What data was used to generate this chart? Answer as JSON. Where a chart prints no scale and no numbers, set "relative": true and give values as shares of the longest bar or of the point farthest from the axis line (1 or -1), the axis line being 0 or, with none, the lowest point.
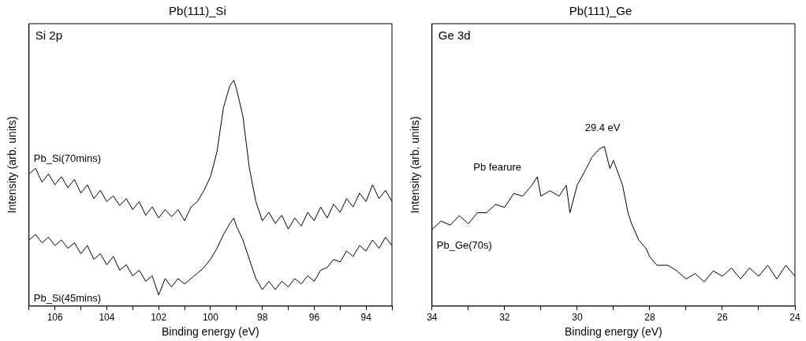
{
  "chart_data": [
    {
      "type": "line",
      "title": "Pb(111)_Si",
      "xlabel": "Binding energy (eV)",
      "ylabel": "Intensity (arb. units)",
      "relative": true,
      "marker": "none",
      "grid": false,
      "legend": false,
      "tick_labels": "x",
      "xlim": [
        107,
        93
      ],
      "xticks": [
        {
          "value": 107,
          "label": null
        },
        106,
        {
          "value": 105,
          "label": null
        },
        104,
        {
          "value": 103,
          "label": null
        },
        102,
        {
          "value": 101,
          "label": null
        },
        100,
        {
          "value": 99,
          "label": null
        },
        98,
        {
          "value": 97,
          "label": null
        },
        96,
        {
          "value": 95,
          "label": null
        },
        94,
        {
          "value": 93,
          "label": null
        }
      ],
      "annotations": [
        "Si 2p"
      ],
      "x": [
        107,
        106.75,
        106.5,
        106.25,
        106,
        105.75,
        105.5,
        105.25,
        105,
        104.75,
        104.5,
        104.25,
        104,
        103.75,
        103.5,
        103.25,
        103,
        102.75,
        102.5,
        102.25,
        102,
        101.75,
        101.5,
        101.25,
        101,
        100.75,
        100.5,
        100.25,
        100,
        99.75,
        99.5,
        99.25,
        99.1,
        99,
        98.75,
        98.5,
        98.25,
        98,
        97.75,
        97.5,
        97.25,
        97,
        96.75,
        96.5,
        96.25,
        96,
        95.75,
        95.5,
        95.25,
        95,
        94.75,
        94.5,
        94.25,
        94,
        93.75,
        93.5,
        93.25,
        93
      ],
      "series": [
        {
          "name": "Pb_Si(70mins)",
          "color": "#000000",
          "values": [
            0.585,
            0.61,
            0.549,
            0.585,
            0.537,
            0.573,
            0.524,
            0.561,
            0.5,
            0.537,
            0.476,
            0.512,
            0.463,
            0.488,
            0.445,
            0.476,
            0.427,
            0.463,
            0.402,
            0.439,
            0.39,
            0.427,
            0.396,
            0.427,
            0.378,
            0.439,
            0.463,
            0.512,
            0.573,
            0.683,
            0.878,
            0.976,
            1,
            0.963,
            0.841,
            0.61,
            0.463,
            0.378,
            0.415,
            0.366,
            0.402,
            0.341,
            0.39,
            0.354,
            0.415,
            0.378,
            0.439,
            0.39,
            0.451,
            0.415,
            0.476,
            0.439,
            0.5,
            0.463,
            0.537,
            0.476,
            0.512,
            0.463
          ]
        },
        {
          "name": "Pb_Si(45mins)",
          "color": "#000000",
          "values": [
            0.293,
            0.317,
            0.28,
            0.305,
            0.268,
            0.293,
            0.256,
            0.28,
            0.232,
            0.268,
            0.207,
            0.232,
            0.183,
            0.22,
            0.159,
            0.183,
            0.134,
            0.159,
            0.11,
            0.134,
            0.049,
            0.122,
            0.085,
            0.122,
            0.098,
            0.122,
            0.146,
            0.171,
            0.207,
            0.256,
            0.317,
            0.366,
            0.39,
            0.354,
            0.293,
            0.207,
            0.122,
            0.073,
            0.11,
            0.073,
            0.11,
            0.085,
            0.122,
            0.098,
            0.134,
            0.11,
            0.159,
            0.171,
            0.207,
            0.195,
            0.244,
            0.22,
            0.268,
            0.244,
            0.293,
            0.256,
            0.305,
            0.268
          ]
        }
      ]
    },
    {
      "type": "line",
      "title": "Pb(111)_Ge",
      "xlabel": "Binding energy (eV)",
      "ylabel": "Intensity (arb. units)",
      "relative": true,
      "marker": "none",
      "grid": false,
      "legend": false,
      "tick_labels": "x",
      "xlim": [
        34,
        24
      ],
      "xticks": [
        34,
        {
          "value": 33,
          "label": null
        },
        32,
        {
          "value": 31,
          "label": null
        },
        30,
        {
          "value": 29,
          "label": null
        },
        28,
        {
          "value": 27,
          "label": null
        },
        26,
        {
          "value": 25,
          "label": null
        },
        24
      ],
      "annotations": [
        "Ge 3d",
        "Pb fearure",
        "29.4 eV"
      ],
      "x": [
        34,
        33.75,
        33.5,
        33.25,
        33,
        32.75,
        32.5,
        32.25,
        32,
        31.75,
        31.5,
        31.25,
        31.1,
        31,
        30.75,
        30.5,
        30.3,
        30.2,
        30,
        29.75,
        29.6,
        29.4,
        29.25,
        29.1,
        29,
        28.75,
        28.6,
        28.5,
        28.3,
        28.1,
        28,
        27.8,
        27.5,
        27.25,
        27,
        26.75,
        26.5,
        26.25,
        26,
        25.75,
        25.5,
        25.25,
        25,
        24.75,
        24.5,
        24.25,
        24
      ],
      "series": [
        {
          "name": "Pb_Ge(70s)",
          "color": "#000000",
          "values": [
            0.481,
            0.533,
            0.507,
            0.567,
            0.516,
            0.585,
            0.585,
            0.637,
            0.619,
            0.706,
            0.689,
            0.758,
            0.81,
            0.689,
            0.723,
            0.689,
            0.758,
            0.585,
            0.758,
            0.862,
            0.931,
            0.983,
            1,
            0.862,
            0.913,
            0.758,
            0.585,
            0.516,
            0.412,
            0.36,
            0.308,
            0.256,
            0.256,
            0.221,
            0.17,
            0.204,
            0.152,
            0.221,
            0.187,
            0.239,
            0.17,
            0.239,
            0.187,
            0.256,
            0.17,
            0.256,
            0.187
          ]
        }
      ]
    }
  ]
}
